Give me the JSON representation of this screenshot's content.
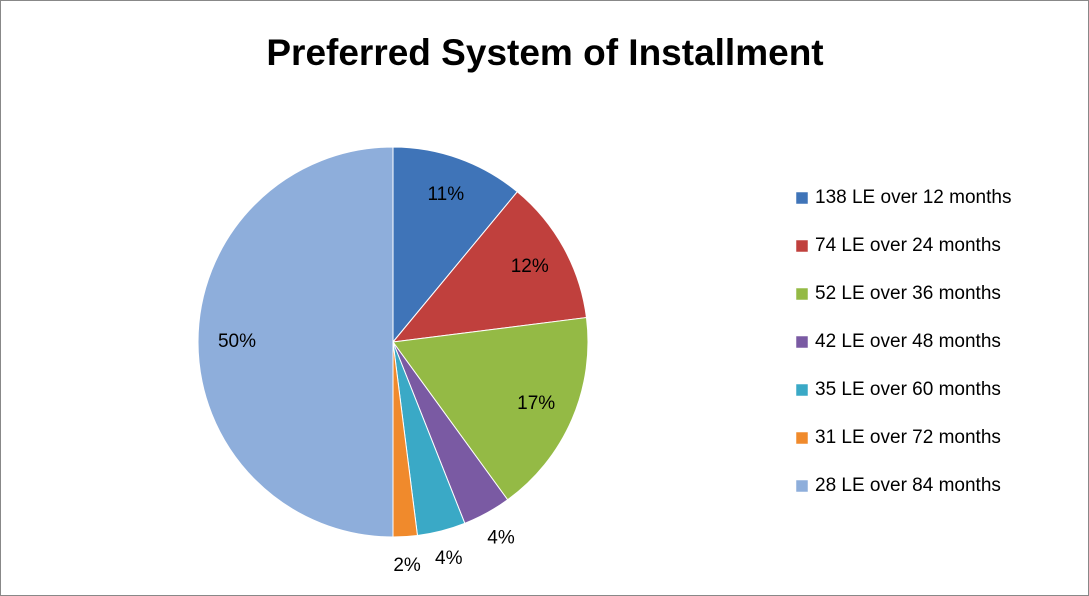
{
  "chart_data": {
    "type": "pie",
    "title": "Preferred System of Installment",
    "categories": [
      "138 LE over 12 months",
      "74 LE over 24 months",
      "52 LE over 36 months",
      "42 LE over 48 months",
      "35 LE over 60 months",
      "31 LE over 72 months",
      "28 LE over 84 months"
    ],
    "values": [
      11,
      12,
      17,
      4,
      4,
      2,
      50
    ],
    "value_labels": [
      "11%",
      "12%",
      "17%",
      "4%",
      "4%",
      "2%",
      "50%"
    ],
    "colors": [
      "#3f74b8",
      "#c0403d",
      "#94ba45",
      "#7a5aa3",
      "#3aa9c6",
      "#f08a2c",
      "#8eaedb"
    ],
    "legend": "right"
  }
}
